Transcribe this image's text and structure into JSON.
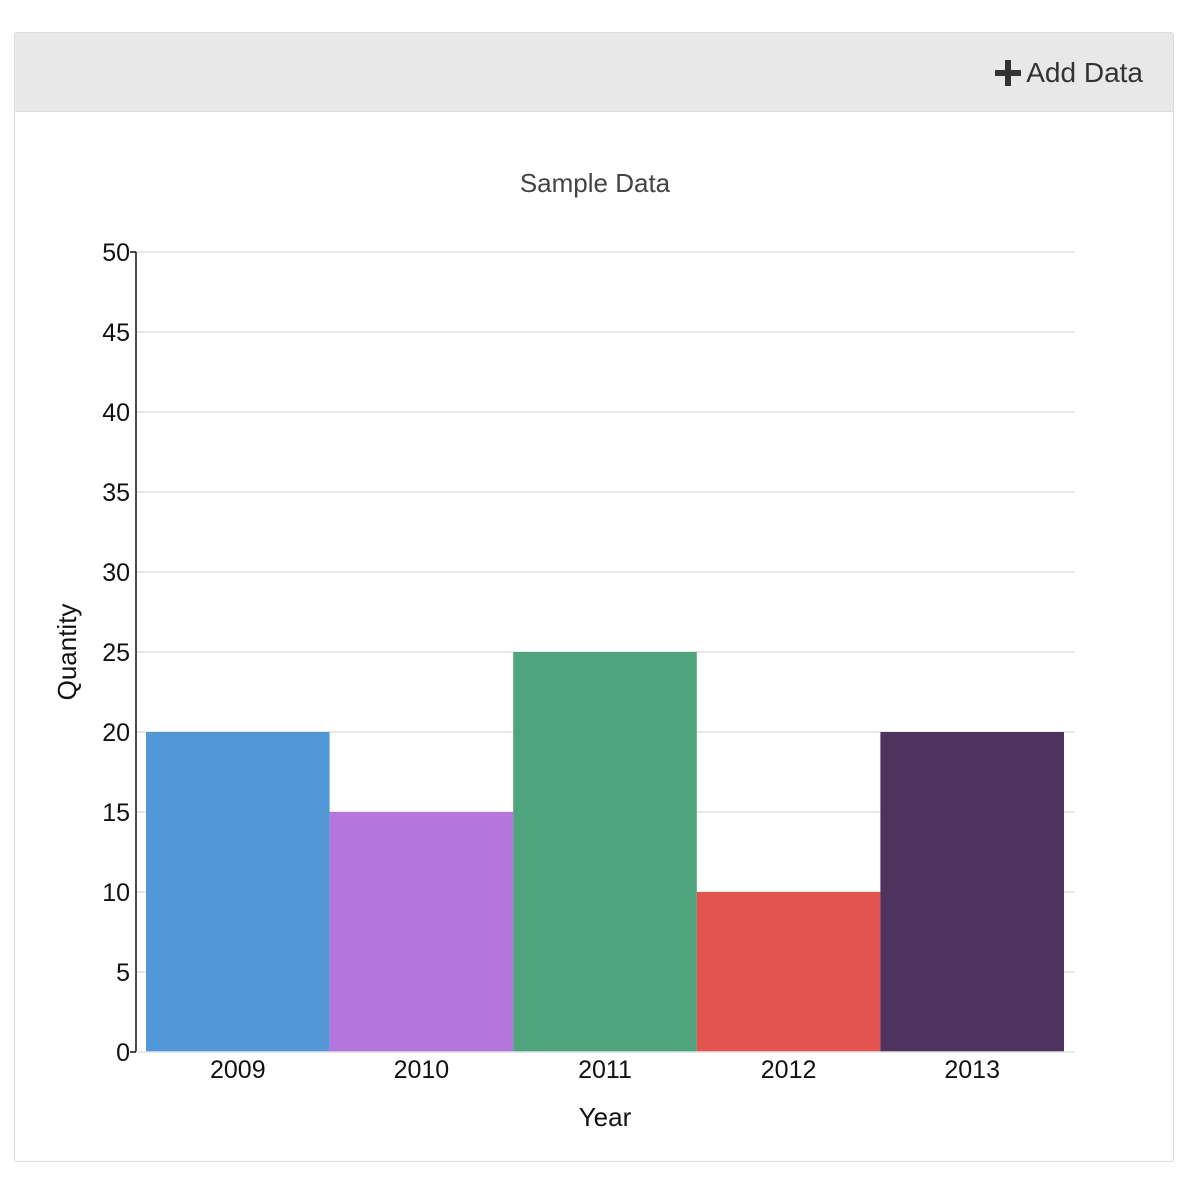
{
  "toolbar": {
    "add_data_label": "Add Data",
    "add_data_icon": "plus-icon"
  },
  "chart_data": {
    "type": "bar",
    "title": "Sample Data",
    "xlabel": "Year",
    "ylabel": "Quantity",
    "categories": [
      "2009",
      "2010",
      "2011",
      "2012",
      "2013"
    ],
    "values": [
      20,
      15,
      25,
      10,
      20
    ],
    "colors": [
      "#5297d6",
      "#b475dd",
      "#4da47d",
      "#e2554f",
      "#4d335d"
    ],
    "ylim": [
      0,
      50
    ],
    "yticks": [
      0,
      5,
      10,
      15,
      20,
      25,
      30,
      35,
      40,
      45,
      50
    ],
    "grid": true,
    "gridColor": "#e2e2e2"
  }
}
